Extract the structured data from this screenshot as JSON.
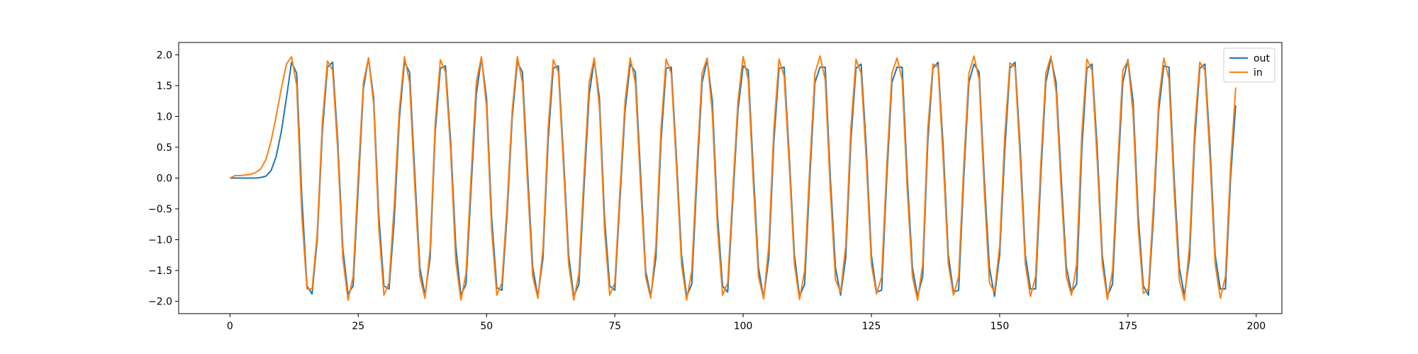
{
  "chart_data": {
    "type": "line",
    "title": "",
    "xlabel": "",
    "ylabel": "",
    "xlim": [
      -10,
      205
    ],
    "ylim": [
      -2.2,
      2.2
    ],
    "xticks": [
      0,
      25,
      50,
      75,
      100,
      125,
      150,
      175,
      200
    ],
    "yticks": [
      -2.0,
      -1.5,
      -1.0,
      -0.5,
      0.0,
      0.5,
      1.0,
      1.5,
      2.0
    ],
    "grid": false,
    "legend_position": "top-right",
    "x_start": 0,
    "x_step": 1,
    "series": [
      {
        "name": "out",
        "color": "#1f77b4",
        "values": [
          0.0,
          0.0,
          0.0,
          0.0,
          0.0,
          0.0,
          0.01,
          0.03,
          0.12,
          0.35,
          0.75,
          1.3,
          1.88,
          1.7,
          -0.3,
          -1.75,
          -1.88,
          -1.0,
          0.75,
          1.8,
          1.88,
          0.6,
          -1.15,
          -1.88,
          -1.75,
          -0.15,
          1.45,
          1.95,
          1.3,
          -0.6,
          -1.75,
          -1.8,
          -0.7,
          0.95,
          1.88,
          1.72,
          0.1,
          -1.45,
          -1.9,
          -1.3,
          0.75,
          1.78,
          1.82,
          0.6,
          -1.1,
          -1.9,
          -1.72,
          -0.15,
          1.35,
          1.95,
          1.3,
          -0.65,
          -1.78,
          -1.82,
          -0.6,
          0.98,
          1.88,
          1.72,
          0.1,
          -1.45,
          -1.92,
          -1.3,
          0.6,
          1.78,
          1.82,
          0.35,
          -1.25,
          -1.92,
          -1.72,
          -0.15,
          1.35,
          1.92,
          1.3,
          -0.65,
          -1.75,
          -1.82,
          -0.35,
          1.1,
          1.85,
          1.72,
          0.1,
          -1.5,
          -1.92,
          -1.3,
          0.6,
          1.78,
          1.8,
          0.35,
          -1.25,
          -1.92,
          -1.72,
          0.0,
          1.55,
          1.92,
          1.25,
          -0.6,
          -1.75,
          -1.85,
          -0.35,
          1.1,
          1.82,
          1.75,
          0.1,
          -1.45,
          -1.95,
          -1.3,
          0.6,
          1.78,
          1.8,
          0.35,
          -1.25,
          -1.92,
          -1.72,
          0.0,
          1.55,
          1.8,
          1.8,
          0.0,
          -1.45,
          -1.9,
          -1.3,
          0.6,
          1.78,
          1.85,
          0.5,
          -1.25,
          -1.85,
          -1.82,
          0.0,
          1.55,
          1.8,
          1.8,
          0.0,
          -1.45,
          -1.92,
          -1.6,
          0.6,
          1.78,
          1.88,
          0.5,
          -1.25,
          -1.85,
          -1.82,
          0.0,
          1.55,
          1.85,
          1.72,
          0.0,
          -1.45,
          -1.92,
          -1.25,
          0.45,
          1.78,
          1.88,
          0.5,
          -1.25,
          -1.8,
          -1.8,
          0.0,
          1.55,
          1.95,
          1.55,
          0.0,
          -1.45,
          -1.85,
          -1.72,
          0.45,
          1.78,
          1.85,
          0.5,
          -1.25,
          -1.92,
          -1.72,
          0.0,
          1.55,
          1.92,
          1.25,
          -0.6,
          -1.75,
          -1.9,
          -0.6,
          1.1,
          1.82,
          1.8,
          0.0,
          -1.45,
          -1.9,
          -1.3,
          0.6,
          1.78,
          1.85,
          0.5,
          -1.25,
          -1.8,
          -1.8,
          0.0,
          1.18
        ]
      },
      {
        "name": "in",
        "color": "#ff7f0e",
        "values": [
          0.0,
          0.04,
          0.04,
          0.05,
          0.06,
          0.09,
          0.15,
          0.3,
          0.6,
          1.0,
          1.45,
          1.85,
          1.97,
          1.5,
          -0.6,
          -1.8,
          -1.8,
          -0.9,
          0.9,
          1.9,
          1.75,
          0.45,
          -1.3,
          -1.98,
          -1.6,
          0.05,
          1.55,
          1.95,
          1.2,
          -0.8,
          -1.9,
          -1.7,
          -0.45,
          1.1,
          1.97,
          1.55,
          -0.1,
          -1.6,
          -1.95,
          -1.15,
          0.9,
          1.92,
          1.72,
          0.45,
          -1.35,
          -1.98,
          -1.55,
          0.05,
          1.55,
          1.97,
          1.15,
          -0.85,
          -1.9,
          -1.7,
          -0.45,
          1.1,
          1.97,
          1.55,
          -0.1,
          -1.6,
          -1.95,
          -1.15,
          0.8,
          1.92,
          1.72,
          0.2,
          -1.4,
          -1.98,
          -1.55,
          0.05,
          1.55,
          1.95,
          1.15,
          -0.85,
          -1.9,
          -1.7,
          -0.2,
          1.25,
          1.95,
          1.55,
          -0.1,
          -1.6,
          -1.95,
          -1.1,
          0.8,
          1.93,
          1.7,
          0.2,
          -1.4,
          -1.98,
          -1.5,
          0.2,
          1.7,
          1.95,
          1.05,
          -0.8,
          -1.9,
          -1.7,
          -0.2,
          1.25,
          1.97,
          1.6,
          -0.1,
          -1.6,
          -1.96,
          -1.1,
          0.8,
          1.93,
          1.65,
          0.2,
          -1.4,
          -1.97,
          -1.5,
          0.2,
          1.7,
          1.98,
          1.6,
          -0.2,
          -1.65,
          -1.85,
          -1.1,
          0.8,
          1.93,
          1.7,
          0.3,
          -1.4,
          -1.88,
          -1.6,
          0.2,
          1.7,
          1.95,
          1.6,
          -0.2,
          -1.6,
          -1.98,
          -1.4,
          0.8,
          1.85,
          1.8,
          0.3,
          -1.4,
          -1.9,
          -1.6,
          0.2,
          1.7,
          1.98,
          1.6,
          -0.2,
          -1.7,
          -1.85,
          -1.1,
          0.7,
          1.87,
          1.8,
          0.3,
          -1.4,
          -1.92,
          -1.6,
          0.2,
          1.7,
          1.98,
          1.4,
          -0.2,
          -1.6,
          -1.9,
          -1.4,
          0.7,
          1.93,
          1.75,
          0.3,
          -1.4,
          -1.97,
          -1.5,
          0.2,
          1.75,
          1.9,
          1.05,
          -0.8,
          -1.87,
          -1.8,
          -0.4,
          1.25,
          1.95,
          1.6,
          -0.2,
          -1.65,
          -1.98,
          -1.1,
          0.8,
          1.88,
          1.75,
          0.3,
          -1.4,
          -1.95,
          -1.6,
          0.2,
          1.47
        ]
      }
    ]
  }
}
